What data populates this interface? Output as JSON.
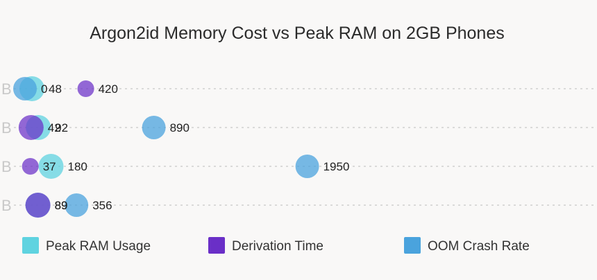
{
  "chart_data": {
    "type": "scatter",
    "title": "Argon2id Memory Cost vs Peak RAM on 2GB Phones",
    "categories": [
      "B",
      "B",
      "B",
      "B"
    ],
    "legend_position": "bottom",
    "grid": true,
    "series": [
      {
        "name": "Peak RAM Usage",
        "color": "#5fd3e0",
        "values": [
          48,
          92,
          180,
          89
        ]
      },
      {
        "name": "Derivation Time",
        "color": "#6a2fc7",
        "values": [
          420,
          42,
          37,
          89
        ]
      },
      {
        "name": "OOM Crash Rate",
        "color": "#4aa3dd",
        "values": [
          0,
          890,
          1950,
          356
        ]
      }
    ]
  }
}
